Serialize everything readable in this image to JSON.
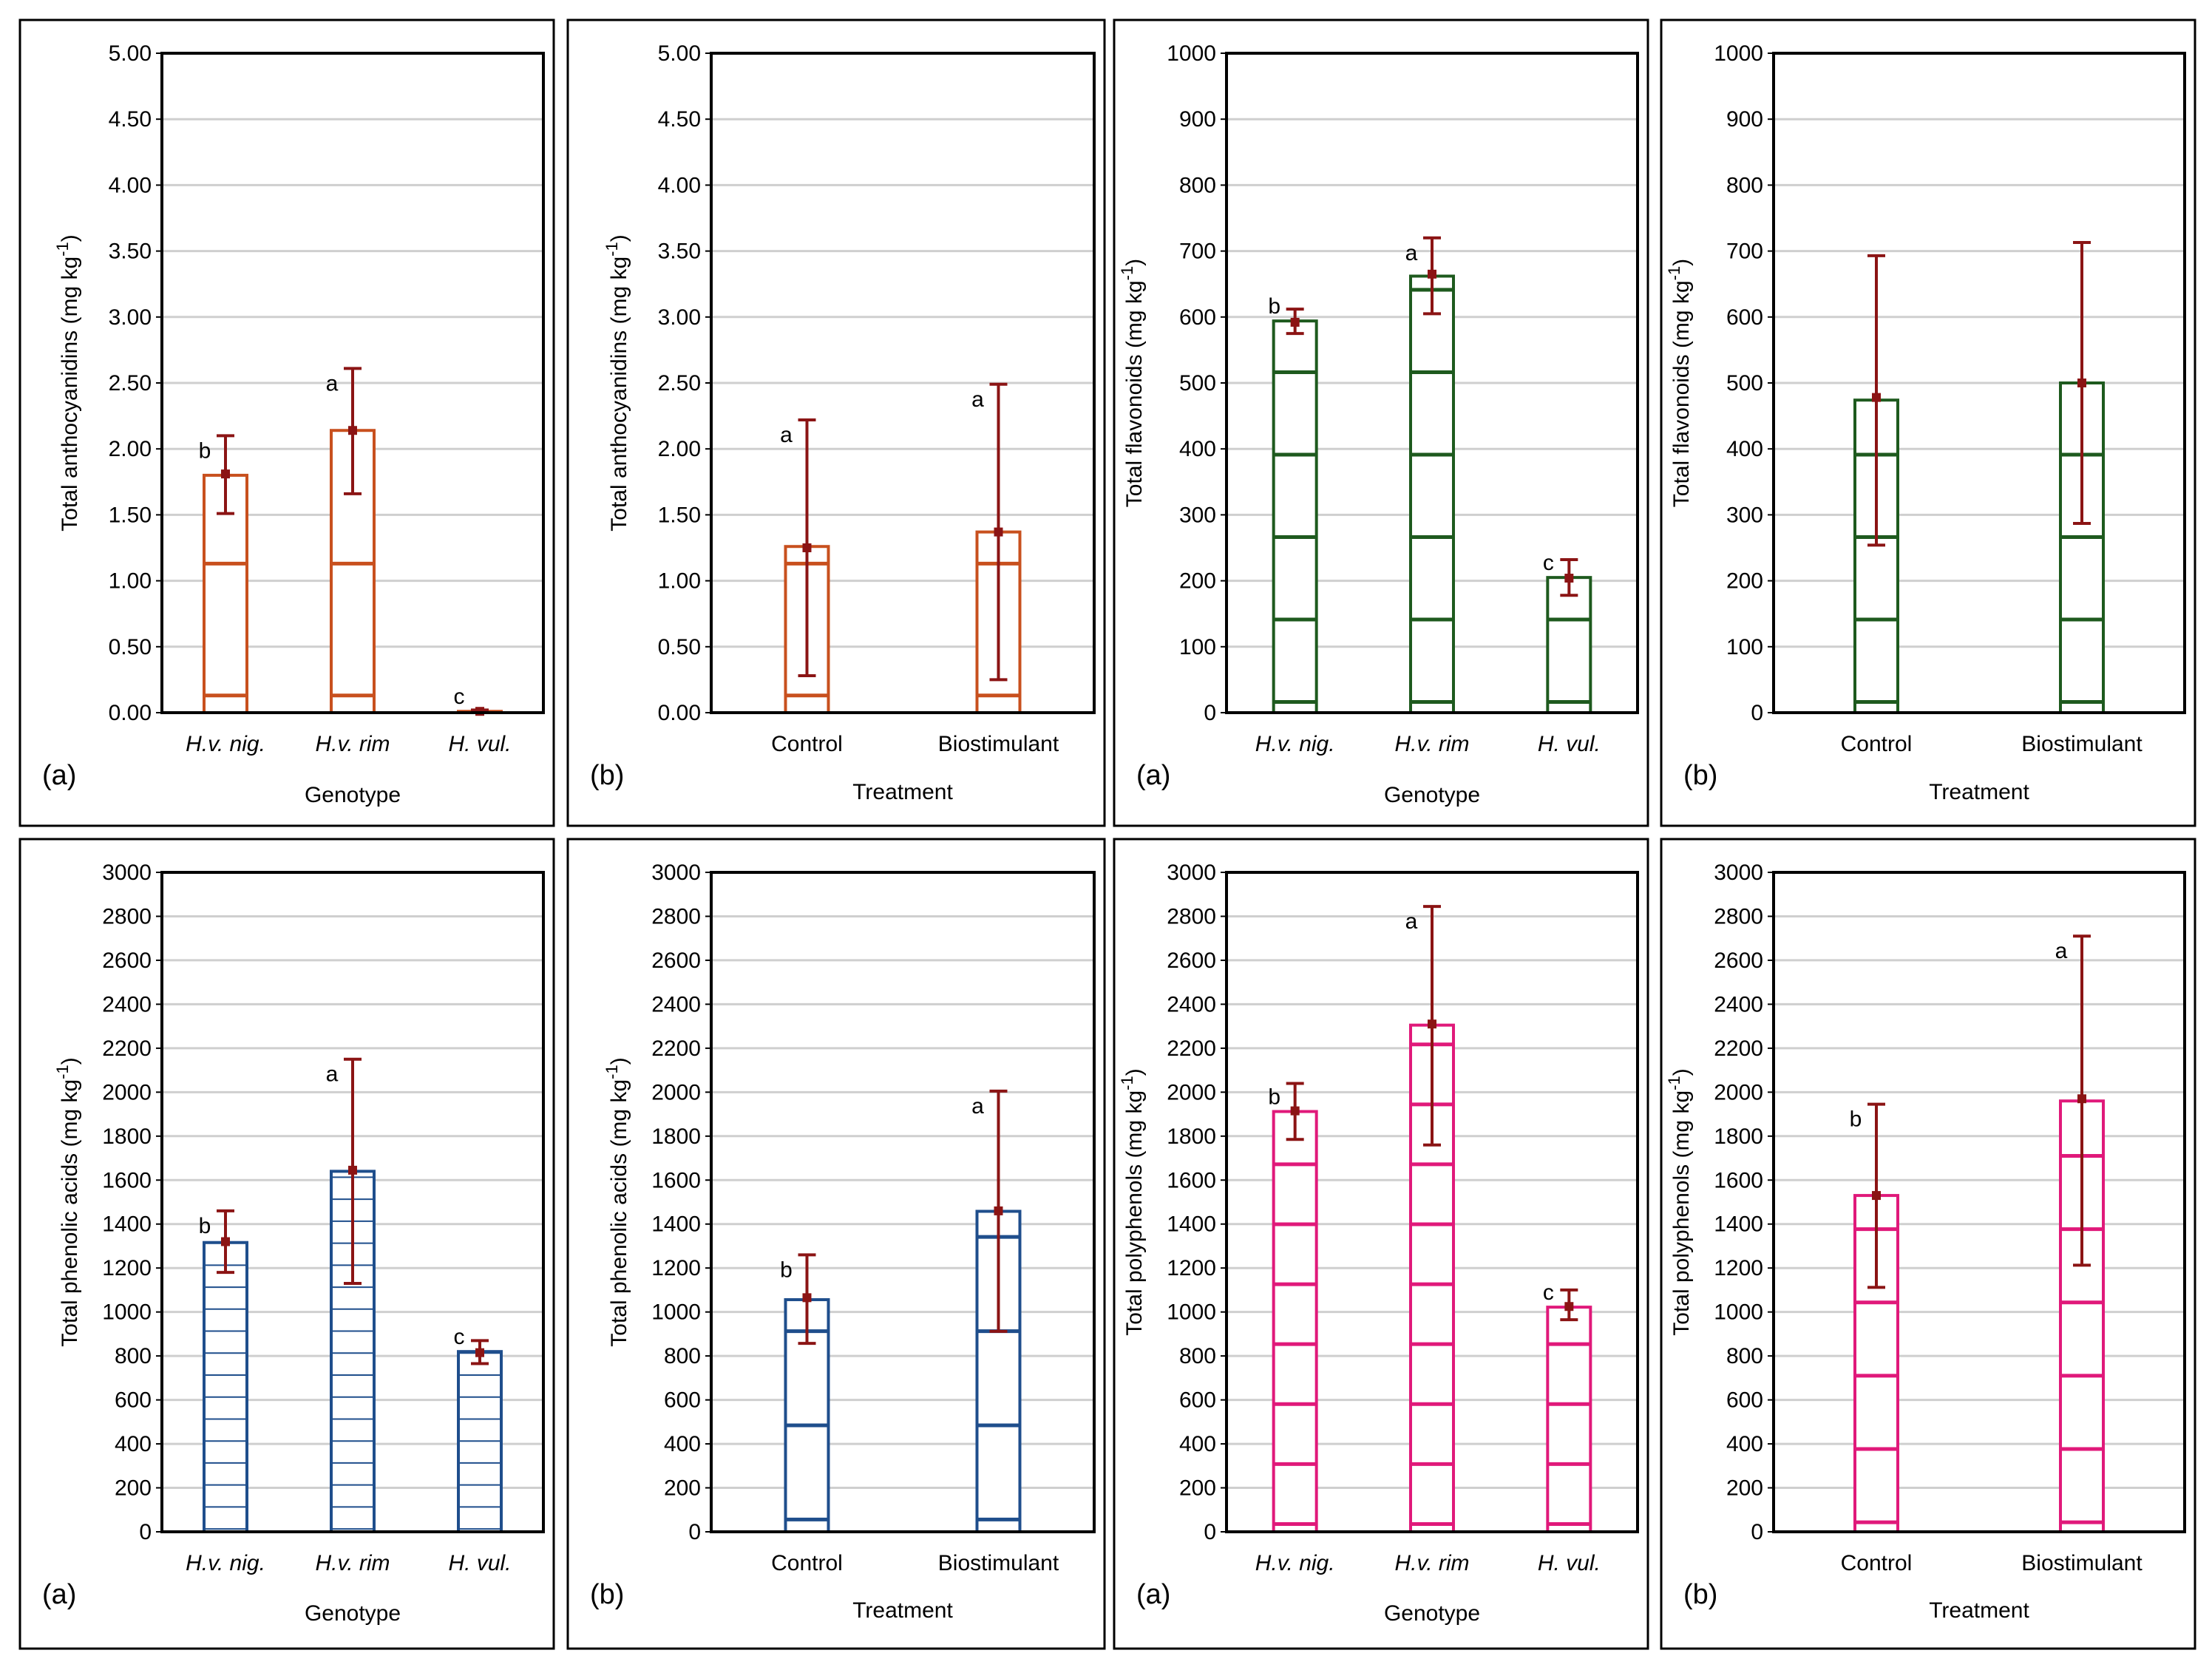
{
  "chart_data": [
    {
      "type": "bar",
      "panel_label": "(a)",
      "ylabel_main": "Total anthocyanidins (mg kg",
      "ylabel_sup": "-1",
      "ylabel_close": ")",
      "xlabel": "Genotype",
      "categories": [
        "H.v. nig.",
        "H.v. rim",
        "H. vul."
      ],
      "category_italic": true,
      "values": [
        1.8,
        2.14,
        0.01
      ],
      "means": [
        1.81,
        2.14,
        0.01
      ],
      "err_low": [
        1.51,
        1.66,
        0.0
      ],
      "err_high": [
        2.1,
        2.61,
        0.02
      ],
      "letters": [
        "b",
        "a",
        "c"
      ],
      "ylim": [
        0,
        5
      ],
      "yticks": [
        "0.00",
        "0.50",
        "1.00",
        "1.50",
        "2.00",
        "2.50",
        "3.00",
        "3.50",
        "4.00",
        "4.50",
        "5.00"
      ],
      "color": "#c8501e",
      "errcolor": "#8b1414",
      "hatch_count": 5,
      "hatch_width": 5
    },
    {
      "type": "bar",
      "panel_label": "(b)",
      "ylabel_main": "Total anthocyanidins (mg kg",
      "ylabel_sup": "-1",
      "ylabel_close": ")",
      "xlabel": "Treatment",
      "categories": [
        "Control",
        "Biostimulant"
      ],
      "category_italic": false,
      "values": [
        1.26,
        1.37
      ],
      "means": [
        1.25,
        1.37
      ],
      "err_low": [
        0.28,
        0.25
      ],
      "err_high": [
        2.22,
        2.49
      ],
      "letters": [
        "a",
        "a"
      ],
      "ylim": [
        0,
        5
      ],
      "yticks": [
        "0.00",
        "0.50",
        "1.00",
        "1.50",
        "2.00",
        "2.50",
        "3.00",
        "3.50",
        "4.00",
        "4.50",
        "5.00"
      ],
      "color": "#c8501e",
      "errcolor": "#8b1414",
      "hatch_count": 5,
      "hatch_width": 5
    },
    {
      "type": "bar",
      "panel_label": "(a)",
      "ylabel_main": "Total flavonoids (mg kg",
      "ylabel_sup": "-1",
      "ylabel_close": ")",
      "xlabel": "Genotype",
      "categories": [
        "H.v. nig.",
        "H.v. rim",
        "H. vul."
      ],
      "category_italic": true,
      "values": [
        594,
        662,
        205
      ],
      "means": [
        592,
        665,
        204
      ],
      "err_low": [
        575,
        605,
        178
      ],
      "err_high": [
        612,
        720,
        232
      ],
      "letters": [
        "b",
        "a",
        "c"
      ],
      "ylim": [
        0,
        1000
      ],
      "yticks": [
        "0",
        "100",
        "200",
        "300",
        "400",
        "500",
        "600",
        "700",
        "800",
        "900",
        "1000"
      ],
      "color": "#1e5a1e",
      "errcolor": "#8b1414",
      "hatch_count": 8,
      "hatch_width": 5
    },
    {
      "type": "bar",
      "panel_label": "(b)",
      "ylabel_main": "Total flavonoids (mg kg",
      "ylabel_sup": "-1",
      "ylabel_close": ")",
      "xlabel": "Treatment",
      "categories": [
        "Control",
        "Biostimulant"
      ],
      "category_italic": false,
      "values": [
        474,
        500
      ],
      "means": [
        478,
        500
      ],
      "err_low": [
        254,
        287
      ],
      "err_high": [
        693,
        713
      ],
      "letters": [
        "",
        ""
      ],
      "ylim": [
        0,
        1000
      ],
      "yticks": [
        "0",
        "100",
        "200",
        "300",
        "400",
        "500",
        "600",
        "700",
        "800",
        "900",
        "1000"
      ],
      "color": "#1e5a1e",
      "errcolor": "#8b1414",
      "hatch_count": 8,
      "hatch_width": 5
    },
    {
      "type": "bar",
      "panel_label": "(a)",
      "ylabel_main": "Total phenolic acids (mg kg",
      "ylabel_sup": "-1",
      "ylabel_close": ")",
      "xlabel": "Genotype",
      "categories": [
        "H.v. nig.",
        "H.v. rim",
        "H. vul."
      ],
      "category_italic": true,
      "values": [
        1316,
        1640,
        820
      ],
      "means": [
        1320,
        1645,
        815
      ],
      "err_low": [
        1180,
        1130,
        765
      ],
      "err_high": [
        1460,
        2150,
        870
      ],
      "letters": [
        "b",
        "a",
        "c"
      ],
      "ylim": [
        0,
        3000
      ],
      "yticks": [
        "0",
        "200",
        "400",
        "600",
        "800",
        "1000",
        "1200",
        "1400",
        "1600",
        "1800",
        "2000",
        "2200",
        "2400",
        "2600",
        "2800",
        "3000"
      ],
      "color": "#1f4e8c",
      "errcolor": "#8b1414",
      "hatch_count": 30,
      "hatch_width": 2
    },
    {
      "type": "bar",
      "panel_label": "(b)",
      "ylabel_main": "Total phenolic acids (mg kg",
      "ylabel_sup": "-1",
      "ylabel_close": ")",
      "xlabel": "Treatment",
      "categories": [
        "Control",
        "Biostimulant"
      ],
      "category_italic": false,
      "values": [
        1056,
        1458
      ],
      "means": [
        1065,
        1460
      ],
      "err_low": [
        857,
        912
      ],
      "err_high": [
        1260,
        2005
      ],
      "letters": [
        "b",
        "a"
      ],
      "ylim": [
        0,
        3000
      ],
      "yticks": [
        "0",
        "200",
        "400",
        "600",
        "800",
        "1000",
        "1200",
        "1400",
        "1600",
        "1800",
        "2000",
        "2200",
        "2400",
        "2600",
        "2800",
        "3000"
      ],
      "color": "#1f4e8c",
      "errcolor": "#8b1414",
      "hatch_count": 7,
      "hatch_width": 5
    },
    {
      "type": "bar",
      "panel_label": "(a)",
      "ylabel_main": "Total polyphenols (mg kg",
      "ylabel_sup": "-1",
      "ylabel_close": ")",
      "xlabel": "Genotype",
      "categories": [
        "H.v. nig.",
        "H.v. rim",
        "H. vul."
      ],
      "category_italic": true,
      "values": [
        1912,
        2305,
        1022
      ],
      "means": [
        1915,
        2310,
        1025
      ],
      "err_low": [
        1785,
        1760,
        965
      ],
      "err_high": [
        2040,
        2845,
        1100
      ],
      "letters": [
        "b",
        "a",
        "c"
      ],
      "ylim": [
        0,
        3000
      ],
      "yticks": [
        "0",
        "200",
        "400",
        "600",
        "800",
        "1000",
        "1200",
        "1400",
        "1600",
        "1800",
        "2000",
        "2200",
        "2400",
        "2600",
        "2800",
        "3000"
      ],
      "color": "#e0197a",
      "errcolor": "#8b1414",
      "hatch_count": 11,
      "hatch_width": 5
    },
    {
      "type": "bar",
      "panel_label": "(b)",
      "ylabel_main": "Total polyphenols (mg kg",
      "ylabel_sup": "-1",
      "ylabel_close": ")",
      "xlabel": "Treatment",
      "categories": [
        "Control",
        "Biostimulant"
      ],
      "category_italic": false,
      "values": [
        1530,
        1960
      ],
      "means": [
        1530,
        1970
      ],
      "err_low": [
        1112,
        1213
      ],
      "err_high": [
        1945,
        2710
      ],
      "letters": [
        "b",
        "a"
      ],
      "ylim": [
        0,
        3000
      ],
      "yticks": [
        "0",
        "200",
        "400",
        "600",
        "800",
        "1000",
        "1200",
        "1400",
        "1600",
        "1800",
        "2000",
        "2200",
        "2400",
        "2600",
        "2800",
        "3000"
      ],
      "color": "#e0197a",
      "errcolor": "#8b1414",
      "hatch_count": 9,
      "hatch_width": 5
    }
  ]
}
